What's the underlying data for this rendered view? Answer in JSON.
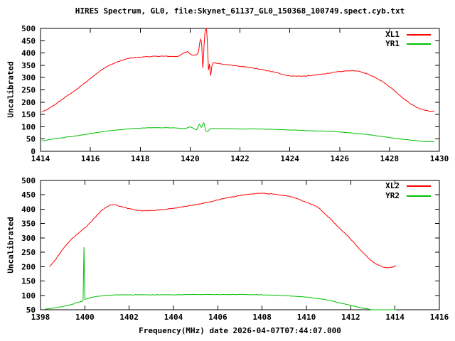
{
  "title": "HIRES Spectrum, GL0, file:Skynet_61137_GL0_150368_100749.spect.cyb.txt",
  "xlabel": "Frequency(MHz) date 2026-04-07T07:44:07.000",
  "colors": {
    "background": "#ffffff",
    "axis": "#000000",
    "text": "#000000",
    "series_red": "#ff0000",
    "series_green": "#00c000"
  },
  "chart_data": [
    {
      "type": "line",
      "plot": "top",
      "ylabel": "Uncalibrated",
      "xlim": [
        1414,
        1430
      ],
      "ylim": [
        0,
        500
      ],
      "x_ticks": [
        1414,
        1416,
        1418,
        1420,
        1422,
        1424,
        1426,
        1428,
        1430
      ],
      "y_ticks": [
        0,
        50,
        100,
        150,
        200,
        250,
        300,
        350,
        400,
        450,
        500
      ],
      "grid": false,
      "legend_position": "top-right-inside",
      "series": [
        {
          "name": "XL1",
          "color": "#ff0000",
          "points": [
            [
              1414.05,
              160
            ],
            [
              1414.3,
              172
            ],
            [
              1414.6,
              192
            ],
            [
              1415.0,
              221
            ],
            [
              1415.5,
              256
            ],
            [
              1416.0,
              296
            ],
            [
              1416.5,
              335
            ],
            [
              1417.0,
              360
            ],
            [
              1417.5,
              377
            ],
            [
              1418.0,
              383
            ],
            [
              1418.5,
              386
            ],
            [
              1419.0,
              387
            ],
            [
              1419.3,
              386
            ],
            [
              1419.55,
              388
            ],
            [
              1419.75,
              400
            ],
            [
              1419.9,
              405
            ],
            [
              1420.05,
              393
            ],
            [
              1420.2,
              392
            ],
            [
              1420.32,
              400
            ],
            [
              1420.42,
              455
            ],
            [
              1420.47,
              428
            ],
            [
              1420.51,
              340
            ],
            [
              1420.56,
              430
            ],
            [
              1420.62,
              500
            ],
            [
              1420.66,
              496
            ],
            [
              1420.71,
              400
            ],
            [
              1420.74,
              330
            ],
            [
              1420.78,
              356
            ],
            [
              1420.82,
              308
            ],
            [
              1420.88,
              350
            ],
            [
              1420.95,
              361
            ],
            [
              1421.1,
              358
            ],
            [
              1421.4,
              353
            ],
            [
              1421.7,
              350
            ],
            [
              1422.0,
              346
            ],
            [
              1422.5,
              339
            ],
            [
              1423.0,
              330
            ],
            [
              1423.5,
              319
            ],
            [
              1423.8,
              311
            ],
            [
              1424.2,
              306
            ],
            [
              1424.6,
              306
            ],
            [
              1425.0,
              310
            ],
            [
              1425.5,
              317
            ],
            [
              1426.0,
              324
            ],
            [
              1426.5,
              328
            ],
            [
              1426.9,
              322
            ],
            [
              1427.2,
              311
            ],
            [
              1427.6,
              291
            ],
            [
              1428.0,
              263
            ],
            [
              1428.4,
              229
            ],
            [
              1428.8,
              197
            ],
            [
              1429.1,
              179
            ],
            [
              1429.4,
              168
            ],
            [
              1429.65,
              163
            ],
            [
              1429.8,
              164
            ]
          ]
        },
        {
          "name": "YR1",
          "color": "#00c000",
          "points": [
            [
              1414.05,
              42
            ],
            [
              1414.5,
              50
            ],
            [
              1415.0,
              57
            ],
            [
              1415.5,
              64
            ],
            [
              1416.0,
              72
            ],
            [
              1416.5,
              80
            ],
            [
              1417.0,
              86
            ],
            [
              1417.5,
              91
            ],
            [
              1418.0,
              94
            ],
            [
              1418.5,
              96
            ],
            [
              1419.0,
              96
            ],
            [
              1419.4,
              95
            ],
            [
              1419.8,
              93
            ],
            [
              1420.0,
              99
            ],
            [
              1420.1,
              95
            ],
            [
              1420.25,
              88
            ],
            [
              1420.38,
              110
            ],
            [
              1420.45,
              97
            ],
            [
              1420.55,
              116
            ],
            [
              1420.63,
              83
            ],
            [
              1420.7,
              81
            ],
            [
              1420.78,
              89
            ],
            [
              1420.9,
              93
            ],
            [
              1421.2,
              92
            ],
            [
              1421.6,
              92
            ],
            [
              1422.0,
              91
            ],
            [
              1422.5,
              91
            ],
            [
              1423.0,
              90
            ],
            [
              1423.5,
              89
            ],
            [
              1424.0,
              87
            ],
            [
              1424.5,
              85
            ],
            [
              1425.0,
              83
            ],
            [
              1425.7,
              81
            ],
            [
              1426.3,
              76
            ],
            [
              1426.8,
              72
            ],
            [
              1427.3,
              66
            ],
            [
              1427.8,
              59
            ],
            [
              1428.3,
              52
            ],
            [
              1428.8,
              46
            ],
            [
              1429.2,
              42
            ],
            [
              1429.5,
              40
            ],
            [
              1429.8,
              40
            ]
          ]
        }
      ]
    },
    {
      "type": "line",
      "plot": "bottom",
      "ylabel": "Uncalibrated",
      "xlim": [
        1398,
        1416
      ],
      "ylim": [
        50,
        500
      ],
      "x_ticks": [
        1398,
        1400,
        1402,
        1404,
        1406,
        1408,
        1410,
        1412,
        1414,
        1416
      ],
      "y_ticks": [
        50,
        100,
        150,
        200,
        250,
        300,
        350,
        400,
        450,
        500
      ],
      "grid": false,
      "legend_position": "top-right-inside",
      "series": [
        {
          "name": "XL2",
          "color": "#ff0000",
          "points": [
            [
              1398.4,
              200
            ],
            [
              1398.65,
              222
            ],
            [
              1398.9,
              250
            ],
            [
              1399.3,
              287
            ],
            [
              1399.7,
              316
            ],
            [
              1400.1,
              342
            ],
            [
              1400.45,
              370
            ],
            [
              1400.8,
              398
            ],
            [
              1401.1,
              412
            ],
            [
              1401.35,
              415
            ],
            [
              1401.6,
              410
            ],
            [
              1401.9,
              404
            ],
            [
              1402.2,
              398
            ],
            [
              1402.5,
              395
            ],
            [
              1402.9,
              395
            ],
            [
              1403.3,
              397
            ],
            [
              1403.7,
              400
            ],
            [
              1404.1,
              404
            ],
            [
              1404.6,
              411
            ],
            [
              1405.1,
              417
            ],
            [
              1405.6,
              425
            ],
            [
              1406.1,
              434
            ],
            [
              1406.6,
              442
            ],
            [
              1407.1,
              449
            ],
            [
              1407.5,
              453
            ],
            [
              1407.9,
              455
            ],
            [
              1408.3,
              454
            ],
            [
              1408.7,
              451
            ],
            [
              1409.1,
              446
            ],
            [
              1409.5,
              439
            ],
            [
              1410.0,
              424
            ],
            [
              1410.5,
              407
            ],
            [
              1411.0,
              372
            ],
            [
              1411.5,
              334
            ],
            [
              1412.0,
              296
            ],
            [
              1412.5,
              253
            ],
            [
              1413.0,
              216
            ],
            [
              1413.35,
              202
            ],
            [
              1413.6,
              197
            ],
            [
              1413.85,
              198
            ],
            [
              1414.05,
              203
            ]
          ]
        },
        {
          "name": "YR2",
          "color": "#00c000",
          "points": [
            [
              1398.2,
              52
            ],
            [
              1398.6,
              56
            ],
            [
              1399.0,
              61
            ],
            [
              1399.4,
              68
            ],
            [
              1399.8,
              78
            ],
            [
              1399.92,
              82
            ],
            [
              1399.96,
              268
            ],
            [
              1400.0,
              87
            ],
            [
              1400.3,
              93
            ],
            [
              1400.6,
              97
            ],
            [
              1401.0,
              100
            ],
            [
              1401.5,
              102
            ],
            [
              1402.0,
              102
            ],
            [
              1402.5,
              102
            ],
            [
              1403.0,
              102
            ],
            [
              1404.0,
              102
            ],
            [
              1405.0,
              103
            ],
            [
              1406.0,
              103
            ],
            [
              1407.0,
              103
            ],
            [
              1408.0,
              102
            ],
            [
              1408.5,
              101
            ],
            [
              1409.0,
              99
            ],
            [
              1409.5,
              97
            ],
            [
              1410.0,
              94
            ],
            [
              1410.5,
              89
            ],
            [
              1411.0,
              83
            ],
            [
              1411.5,
              74
            ],
            [
              1412.0,
              65
            ],
            [
              1412.5,
              56
            ],
            [
              1413.0,
              50
            ],
            [
              1413.4,
              47
            ],
            [
              1413.8,
              46
            ],
            [
              1414.05,
              47
            ]
          ]
        }
      ]
    }
  ]
}
